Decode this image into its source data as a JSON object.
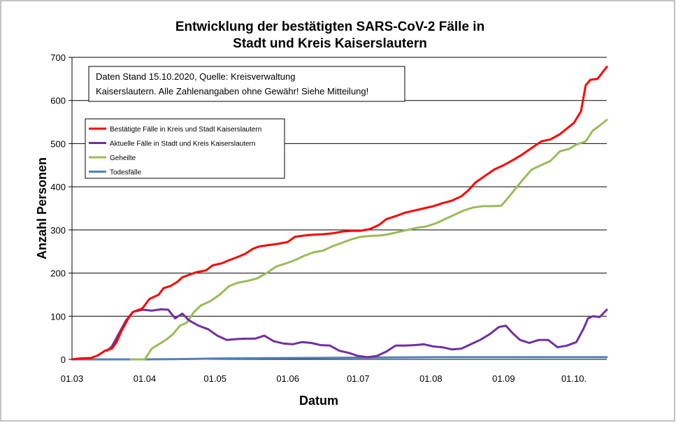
{
  "chart_data": {
    "type": "line",
    "title_line1": "Entwicklung der bestätigten SARS-CoV-2 Fälle in",
    "title_line2": "Stadt und Kreis Kaiserslautern",
    "xlabel": "Datum",
    "ylabel": "Anzahl Personen",
    "ylim": [
      0,
      700
    ],
    "yticks": [
      0,
      100,
      200,
      300,
      400,
      500,
      600,
      700
    ],
    "xlim": [
      "2020-03-01",
      "2020-10-15"
    ],
    "xticks": [
      {
        "date": "2020-03-01",
        "label": "01.03"
      },
      {
        "date": "2020-04-01",
        "label": "01.04"
      },
      {
        "date": "2020-05-01",
        "label": "01.05"
      },
      {
        "date": "2020-06-01",
        "label": "01.06"
      },
      {
        "date": "2020-07-01",
        "label": "01.07"
      },
      {
        "date": "2020-08-01",
        "label": "01.08"
      },
      {
        "date": "2020-09-01",
        "label": "01.09"
      },
      {
        "date": "2020-10-01",
        "label": "01.10."
      }
    ],
    "grid": "horizontal",
    "legend_position": "top-left",
    "note_line1": "Daten Stand 15.10.2020, Quelle: Kreisverwaltung",
    "note_line2": "Kaiserslautern. Alle Zahlenangaben ohne Gewähr! Siehe Mitteilung!",
    "series": [
      {
        "name": "Bestätigte Fälle in Kreis und Stadt Kaiserslautern",
        "color": "#ff0000",
        "points": [
          [
            "2020-03-01",
            0
          ],
          [
            "2020-03-04",
            2
          ],
          [
            "2020-03-09",
            3
          ],
          [
            "2020-03-12",
            9
          ],
          [
            "2020-03-15",
            20
          ],
          [
            "2020-03-18",
            25
          ],
          [
            "2020-03-20",
            40
          ],
          [
            "2020-03-22",
            65
          ],
          [
            "2020-03-25",
            95
          ],
          [
            "2020-03-27",
            110
          ],
          [
            "2020-03-31",
            118
          ],
          [
            "2020-04-03",
            140
          ],
          [
            "2020-04-07",
            150
          ],
          [
            "2020-04-09",
            165
          ],
          [
            "2020-04-12",
            170
          ],
          [
            "2020-04-15",
            180
          ],
          [
            "2020-04-17",
            190
          ],
          [
            "2020-04-20",
            196
          ],
          [
            "2020-04-23",
            202
          ],
          [
            "2020-04-27",
            206
          ],
          [
            "2020-04-30",
            218
          ],
          [
            "2020-05-04",
            223
          ],
          [
            "2020-05-07",
            230
          ],
          [
            "2020-05-11",
            238
          ],
          [
            "2020-05-14",
            245
          ],
          [
            "2020-05-17",
            256
          ],
          [
            "2020-05-20",
            262
          ],
          [
            "2020-05-24",
            265
          ],
          [
            "2020-05-28",
            268
          ],
          [
            "2020-06-01",
            272
          ],
          [
            "2020-06-04",
            284
          ],
          [
            "2020-06-08",
            287
          ],
          [
            "2020-06-12",
            289
          ],
          [
            "2020-06-16",
            290
          ],
          [
            "2020-06-20",
            292
          ],
          [
            "2020-06-24",
            296
          ],
          [
            "2020-06-28",
            298
          ],
          [
            "2020-07-02",
            298
          ],
          [
            "2020-07-06",
            302
          ],
          [
            "2020-07-10",
            312
          ],
          [
            "2020-07-13",
            325
          ],
          [
            "2020-07-17",
            332
          ],
          [
            "2020-07-21",
            340
          ],
          [
            "2020-07-25",
            345
          ],
          [
            "2020-07-29",
            350
          ],
          [
            "2020-08-02",
            355
          ],
          [
            "2020-08-06",
            362
          ],
          [
            "2020-08-10",
            368
          ],
          [
            "2020-08-14",
            378
          ],
          [
            "2020-08-17",
            392
          ],
          [
            "2020-08-20",
            410
          ],
          [
            "2020-08-24",
            425
          ],
          [
            "2020-08-28",
            440
          ],
          [
            "2020-09-01",
            450
          ],
          [
            "2020-09-05",
            462
          ],
          [
            "2020-09-09",
            475
          ],
          [
            "2020-09-13",
            490
          ],
          [
            "2020-09-17",
            505
          ],
          [
            "2020-09-21",
            510
          ],
          [
            "2020-09-25",
            522
          ],
          [
            "2020-09-28",
            535
          ],
          [
            "2020-10-01",
            548
          ],
          [
            "2020-10-04",
            575
          ],
          [
            "2020-10-06",
            635
          ],
          [
            "2020-10-08",
            648
          ],
          [
            "2020-10-11",
            650
          ],
          [
            "2020-10-15",
            678
          ]
        ]
      },
      {
        "name": "Aktuelle Fälle in Stadt und Kreis Kaiserslautern",
        "color": "#7030a0",
        "points": [
          [
            "2020-03-16",
            20
          ],
          [
            "2020-03-18",
            30
          ],
          [
            "2020-03-21",
            60
          ],
          [
            "2020-03-24",
            90
          ],
          [
            "2020-03-27",
            110
          ],
          [
            "2020-03-31",
            115
          ],
          [
            "2020-04-04",
            113
          ],
          [
            "2020-04-08",
            116
          ],
          [
            "2020-04-11",
            115
          ],
          [
            "2020-04-14",
            95
          ],
          [
            "2020-04-17",
            106
          ],
          [
            "2020-04-20",
            90
          ],
          [
            "2020-04-24",
            78
          ],
          [
            "2020-04-28",
            70
          ],
          [
            "2020-05-02",
            55
          ],
          [
            "2020-05-06",
            45
          ],
          [
            "2020-05-10",
            47
          ],
          [
            "2020-05-14",
            48
          ],
          [
            "2020-05-18",
            48
          ],
          [
            "2020-05-22",
            55
          ],
          [
            "2020-05-26",
            42
          ],
          [
            "2020-05-30",
            37
          ],
          [
            "2020-06-03",
            35
          ],
          [
            "2020-06-07",
            40
          ],
          [
            "2020-06-11",
            38
          ],
          [
            "2020-06-15",
            33
          ],
          [
            "2020-06-19",
            32
          ],
          [
            "2020-06-23",
            20
          ],
          [
            "2020-06-27",
            15
          ],
          [
            "2020-07-01",
            8
          ],
          [
            "2020-07-05",
            5
          ],
          [
            "2020-07-09",
            8
          ],
          [
            "2020-07-13",
            18
          ],
          [
            "2020-07-17",
            32
          ],
          [
            "2020-07-21",
            32
          ],
          [
            "2020-07-25",
            33
          ],
          [
            "2020-07-29",
            35
          ],
          [
            "2020-08-02",
            30
          ],
          [
            "2020-08-06",
            28
          ],
          [
            "2020-08-10",
            23
          ],
          [
            "2020-08-14",
            25
          ],
          [
            "2020-08-18",
            35
          ],
          [
            "2020-08-22",
            45
          ],
          [
            "2020-08-26",
            58
          ],
          [
            "2020-08-30",
            75
          ],
          [
            "2020-09-02",
            78
          ],
          [
            "2020-09-05",
            60
          ],
          [
            "2020-09-08",
            45
          ],
          [
            "2020-09-12",
            38
          ],
          [
            "2020-09-16",
            45
          ],
          [
            "2020-09-20",
            45
          ],
          [
            "2020-09-24",
            28
          ],
          [
            "2020-09-28",
            32
          ],
          [
            "2020-10-02",
            40
          ],
          [
            "2020-10-05",
            70
          ],
          [
            "2020-10-07",
            95
          ],
          [
            "2020-10-09",
            100
          ],
          [
            "2020-10-12",
            98
          ],
          [
            "2020-10-15",
            115
          ]
        ]
      },
      {
        "name": "Geheilte",
        "color": "#9bbb59",
        "points": [
          [
            "2020-03-26",
            0
          ],
          [
            "2020-04-01",
            0
          ],
          [
            "2020-04-04",
            25
          ],
          [
            "2020-04-07",
            35
          ],
          [
            "2020-04-10",
            45
          ],
          [
            "2020-04-13",
            58
          ],
          [
            "2020-04-16",
            78
          ],
          [
            "2020-04-19",
            85
          ],
          [
            "2020-04-22",
            110
          ],
          [
            "2020-04-25",
            125
          ],
          [
            "2020-04-29",
            135
          ],
          [
            "2020-05-03",
            150
          ],
          [
            "2020-05-07",
            170
          ],
          [
            "2020-05-11",
            178
          ],
          [
            "2020-05-15",
            182
          ],
          [
            "2020-05-19",
            188
          ],
          [
            "2020-05-23",
            200
          ],
          [
            "2020-05-27",
            215
          ],
          [
            "2020-05-31",
            222
          ],
          [
            "2020-06-04",
            230
          ],
          [
            "2020-06-08",
            240
          ],
          [
            "2020-06-12",
            248
          ],
          [
            "2020-06-16",
            252
          ],
          [
            "2020-06-20",
            262
          ],
          [
            "2020-06-24",
            270
          ],
          [
            "2020-06-28",
            278
          ],
          [
            "2020-07-02",
            284
          ],
          [
            "2020-07-06",
            286
          ],
          [
            "2020-07-10",
            287
          ],
          [
            "2020-07-14",
            290
          ],
          [
            "2020-07-18",
            295
          ],
          [
            "2020-07-22",
            300
          ],
          [
            "2020-07-26",
            305
          ],
          [
            "2020-07-30",
            308
          ],
          [
            "2020-08-03",
            315
          ],
          [
            "2020-08-07",
            325
          ],
          [
            "2020-08-11",
            335
          ],
          [
            "2020-08-15",
            345
          ],
          [
            "2020-08-19",
            352
          ],
          [
            "2020-08-23",
            355
          ],
          [
            "2020-08-27",
            355
          ],
          [
            "2020-08-31",
            356
          ],
          [
            "2020-09-03",
            375
          ],
          [
            "2020-09-06",
            395
          ],
          [
            "2020-09-09",
            415
          ],
          [
            "2020-09-13",
            440
          ],
          [
            "2020-09-17",
            450
          ],
          [
            "2020-09-21",
            460
          ],
          [
            "2020-09-25",
            482
          ],
          [
            "2020-09-29",
            488
          ],
          [
            "2020-10-02",
            498
          ],
          [
            "2020-10-06",
            505
          ],
          [
            "2020-10-09",
            530
          ],
          [
            "2020-10-12",
            542
          ],
          [
            "2020-10-15",
            555
          ]
        ]
      },
      {
        "name": "Todesfälle",
        "color": "#4f81bd",
        "points": [
          [
            "2020-03-01",
            0
          ],
          [
            "2020-04-01",
            0
          ],
          [
            "2020-04-21",
            1
          ],
          [
            "2020-05-01",
            2
          ],
          [
            "2020-06-01",
            3
          ],
          [
            "2020-07-01",
            4
          ],
          [
            "2020-08-01",
            5
          ],
          [
            "2020-09-01",
            5
          ],
          [
            "2020-10-01",
            5
          ],
          [
            "2020-10-15",
            5
          ]
        ]
      }
    ]
  }
}
